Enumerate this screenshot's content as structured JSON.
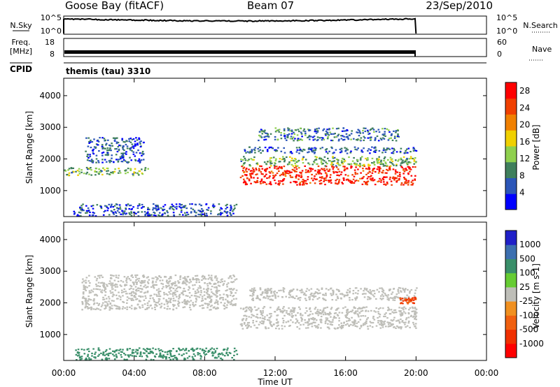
{
  "header": {
    "station": "Goose Bay (fitACF)",
    "beam": "Beam 07",
    "date": "23/Sep/2010"
  },
  "top_panels": {
    "nsky_label": "N.Sky",
    "nsearch_label": "N.Search",
    "noise_ticks_left": [
      "10^5",
      "10^0"
    ],
    "noise_ticks_right": [
      "10^5",
      "10^0"
    ],
    "freq_label": "Freq.",
    "freq_unit": "[MHz]",
    "freq_ticks": [
      "18",
      "8"
    ],
    "nave_label": "Nave",
    "nave_ticks": [
      "60",
      "0"
    ],
    "cpid_label": "CPID",
    "cpid_value": "themis (tau) 3310"
  },
  "colors": {
    "power_scale": [
      "#0000ff",
      "#2c56b8",
      "#3f7f5c",
      "#8fd04e",
      "#f0d000",
      "#f08000",
      "#f04000",
      "#ff0000"
    ],
    "velocity_scale": [
      "#2020c8",
      "#3c6fb0",
      "#3a8f6a",
      "#66cc33",
      "#bebeb8",
      "#f09020",
      "#f06010",
      "#f03000",
      "#ff0000"
    ]
  },
  "chart_data": [
    {
      "type": "heatmap",
      "name": "power",
      "xlabel": "",
      "ylabel": "Slant Range [km]",
      "x_ticks": [
        "00:00",
        "04:00",
        "08:00",
        "12:00",
        "16:00",
        "20:00",
        "00:00"
      ],
      "xlim_hours": [
        0,
        24
      ],
      "y_ticks": [
        1000,
        2000,
        3000,
        4000
      ],
      "ylim_km": [
        180,
        4550
      ],
      "colorbar": {
        "label": "Power [dB]",
        "ticks": [
          4,
          8,
          12,
          16,
          20,
          24,
          28
        ],
        "range": [
          0,
          30
        ]
      },
      "regions": [
        {
          "t0": 0.0,
          "t1": 4.8,
          "r0": 1500,
          "r1": 1750,
          "value": 12
        },
        {
          "t0": 1.2,
          "t1": 4.5,
          "r0": 1900,
          "r1": 2700,
          "value": 6
        },
        {
          "t0": 0.5,
          "t1": 9.8,
          "r0": 220,
          "r1": 600,
          "value": 6
        },
        {
          "t0": 10.0,
          "t1": 20.0,
          "r0": 1200,
          "r1": 1800,
          "value": 27
        },
        {
          "t0": 10.0,
          "t1": 20.0,
          "r0": 1800,
          "r1": 2100,
          "value": 12
        },
        {
          "t0": 10.2,
          "t1": 20.0,
          "r0": 2200,
          "r1": 2400,
          "value": 6
        },
        {
          "t0": 11.0,
          "t1": 19.0,
          "r0": 2600,
          "r1": 3000,
          "value": 8
        }
      ]
    },
    {
      "type": "heatmap",
      "name": "velocity",
      "xlabel": "Time UT",
      "ylabel": "Slant Range [km]",
      "x_ticks": [
        "00:00",
        "04:00",
        "08:00",
        "12:00",
        "16:00",
        "20:00",
        "00:00"
      ],
      "xlim_hours": [
        0,
        24
      ],
      "y_ticks": [
        1000,
        2000,
        3000,
        4000
      ],
      "ylim_km": [
        180,
        4550
      ],
      "colorbar": {
        "label": "Velocity [m s-1]",
        "ticks": [
          1000,
          500,
          100,
          25,
          -25,
          -100,
          -500,
          -1000
        ]
      },
      "regions": [
        {
          "t0": 1.0,
          "t1": 9.8,
          "r0": 1800,
          "r1": 2900,
          "value": 0
        },
        {
          "t0": 10.0,
          "t1": 20.0,
          "r0": 1200,
          "r1": 1900,
          "value": 0
        },
        {
          "t0": 10.5,
          "t1": 20.0,
          "r0": 2100,
          "r1": 2500,
          "value": 0
        },
        {
          "t0": 0.5,
          "t1": 9.8,
          "r0": 220,
          "r1": 600,
          "value": 80
        },
        {
          "t0": 19.0,
          "t1": 20.0,
          "r0": 2000,
          "r1": 2200,
          "value": -300
        }
      ]
    }
  ]
}
